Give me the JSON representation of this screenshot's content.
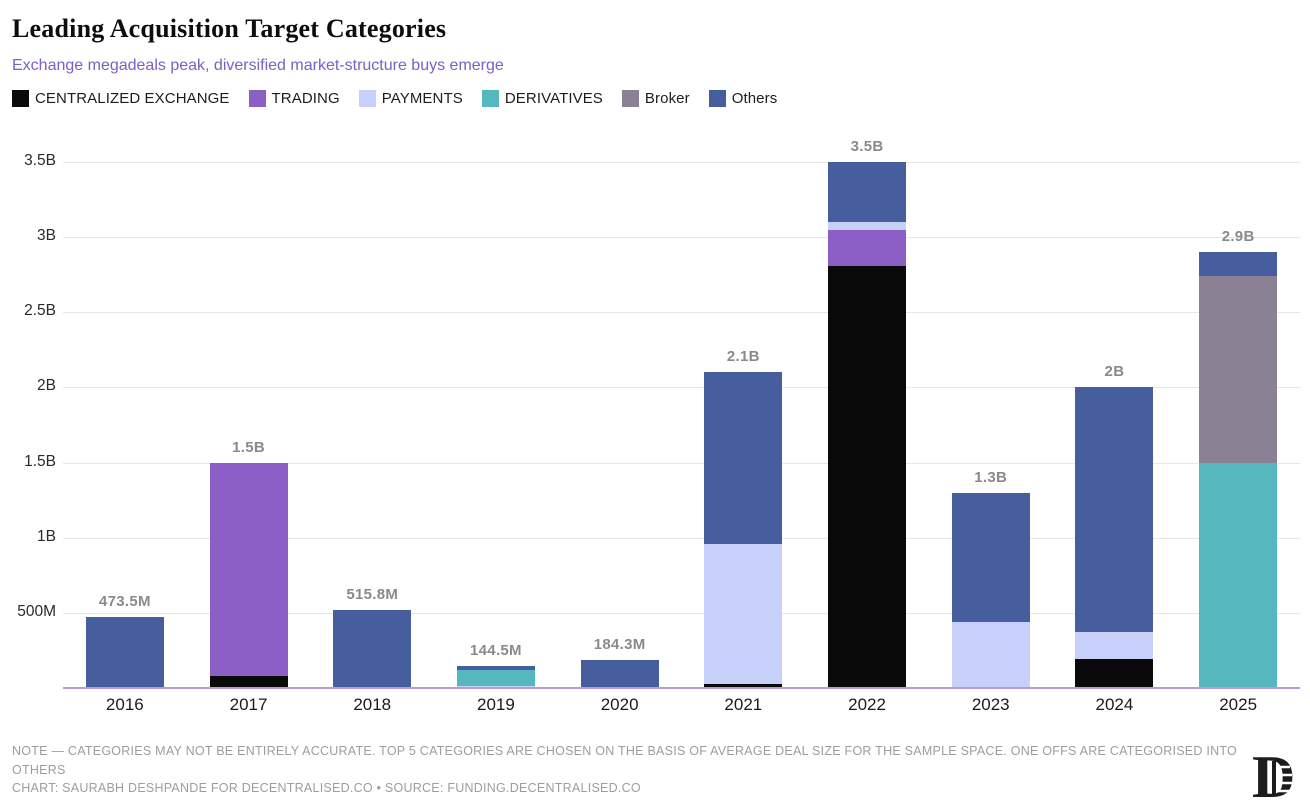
{
  "header": {
    "title": "Leading Acquisition Target Categories",
    "subtitle": "Exchange megadeals peak, diversified market-structure buys emerge"
  },
  "legend": [
    {
      "label": "CENTRALIZED EXCHANGE",
      "key": "centralized_exchange"
    },
    {
      "label": "TRADING",
      "key": "trading"
    },
    {
      "label": "PAYMENTS",
      "key": "payments"
    },
    {
      "label": "DERIVATIVES",
      "key": "derivatives"
    },
    {
      "label": "Broker",
      "key": "broker"
    },
    {
      "label": "Others",
      "key": "others"
    }
  ],
  "colors": {
    "centralized_exchange": "#0a0a0a",
    "trading": "#8b5fc6",
    "payments": "#c6d0f8",
    "derivatives": "#55b8be",
    "broker": "#8a8294",
    "others": "#465d9e",
    "axis_line": "#b79bd6",
    "gridline": "#e8e8e8",
    "subtitle": "#7b5fc2",
    "value_label": "#8a8a8a"
  },
  "chart_data": {
    "type": "bar",
    "stacked": true,
    "unit": "USD millions",
    "title": "Leading Acquisition Target Categories",
    "xlabel": "",
    "ylabel": "",
    "ylim": [
      0,
      3500
    ],
    "grid": "horizontal",
    "legend_position": "top",
    "categories": [
      "2016",
      "2017",
      "2018",
      "2019",
      "2020",
      "2021",
      "2022",
      "2023",
      "2024",
      "2025"
    ],
    "series": [
      {
        "name": "CENTRALIZED EXCHANGE",
        "key": "centralized_exchange",
        "values": [
          0,
          80,
          0,
          0,
          0,
          25,
          2810,
          0,
          195,
          0
        ]
      },
      {
        "name": "TRADING",
        "key": "trading",
        "values": [
          0,
          1420,
          0,
          0,
          0,
          0,
          240,
          0,
          0,
          0
        ]
      },
      {
        "name": "PAYMENTS",
        "key": "payments",
        "values": [
          0,
          0,
          0,
          13,
          0,
          935,
          50,
          440,
          175,
          0
        ]
      },
      {
        "name": "DERIVATIVES",
        "key": "derivatives",
        "values": [
          0,
          0,
          0,
          105,
          0,
          0,
          0,
          0,
          0,
          1500
        ]
      },
      {
        "name": "Broker",
        "key": "broker",
        "values": [
          0,
          0,
          0,
          0,
          0,
          0,
          0,
          0,
          0,
          1240
        ]
      },
      {
        "name": "Others",
        "key": "others",
        "values": [
          473.5,
          0,
          515.8,
          26.5,
          184.3,
          1140,
          400,
          860,
          1630,
          160
        ]
      }
    ],
    "totals": [
      473.5,
      1500,
      515.8,
      144.5,
      184.3,
      2100,
      3500,
      1300,
      2000,
      2900
    ],
    "total_labels": [
      "473.5M",
      "1.5B",
      "515.8M",
      "144.5M",
      "184.3M",
      "2.1B",
      "3.5B",
      "1.3B",
      "2B",
      "2.9B"
    ],
    "y_ticks": [
      "500M",
      "1B",
      "1.5B",
      "2B",
      "2.5B",
      "3B",
      "3.5B"
    ]
  },
  "footer": {
    "note": "NOTE — CATEGORIES MAY NOT BE ENTIRELY ACCURATE. TOP 5 CATEGORIES ARE CHOSEN ON THE BASIS OF AVERAGE DEAL SIZE FOR THE SAMPLE SPACE. ONE OFFS ARE CATEGORISED INTO OTHERS",
    "credit": "CHART: SAURABH DESHPANDE FOR DECENTRALISED.CO • SOURCE: FUNDING.DECENTRALISED.CO",
    "logo": "decentralised-monogram"
  }
}
